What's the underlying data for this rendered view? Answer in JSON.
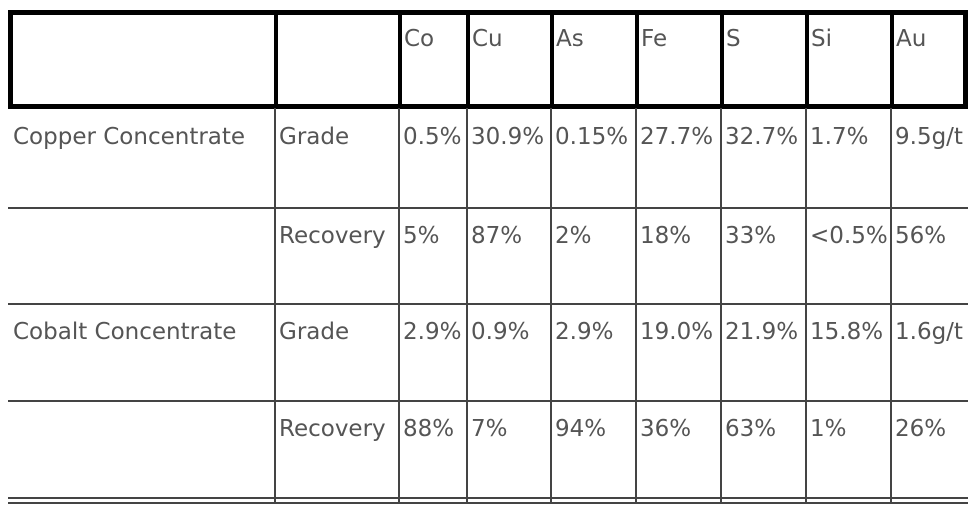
{
  "table": {
    "header": [
      "Co",
      "Cu",
      "As",
      "Fe",
      "S",
      "Si",
      "Au"
    ],
    "rows": [
      {
        "product": "Copper Concentrate",
        "metric": "Grade",
        "values": [
          "0.5%",
          "30.9%",
          "0.15%",
          "27.7%",
          "32.7%",
          "1.7%",
          "9.5g/t"
        ]
      },
      {
        "metric": "Recovery",
        "values": [
          "5%",
          "87%",
          "2%",
          "18%",
          "33%",
          "<0.5%",
          "56%"
        ]
      },
      {
        "product": "Cobalt Concentrate",
        "metric": "Grade",
        "values": [
          "2.9%",
          "0.9%",
          "2.9%",
          "19.0%",
          "21.9%",
          "15.8%",
          "1.6g/t"
        ]
      },
      {
        "metric": "Recovery",
        "values": [
          "88%",
          "7%",
          "94%",
          "36%",
          "63%",
          "1%",
          "26%"
        ]
      }
    ]
  }
}
